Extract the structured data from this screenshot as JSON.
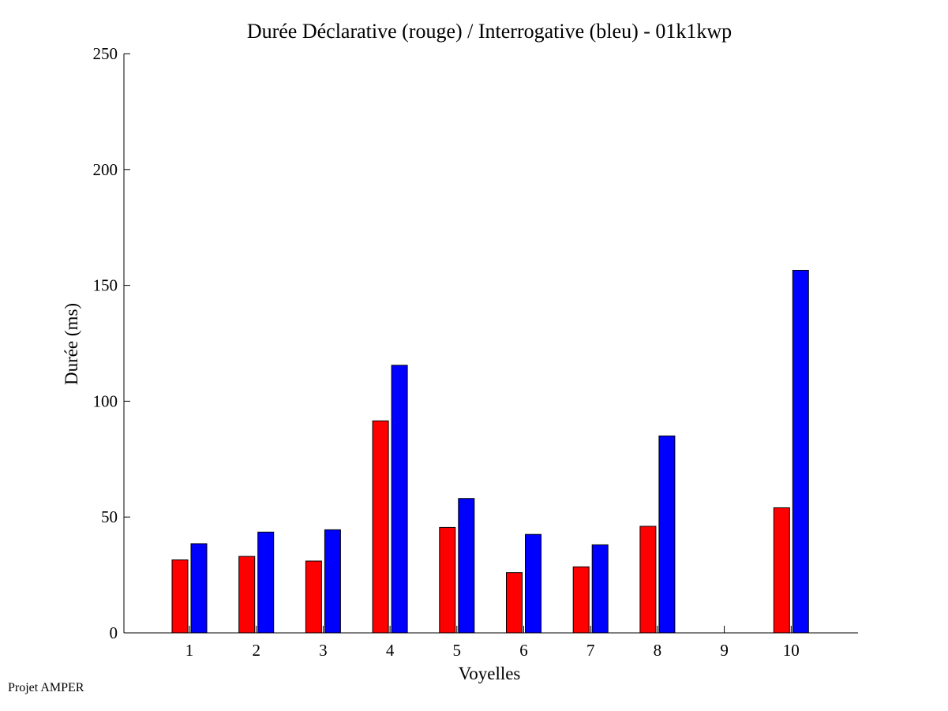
{
  "footer": "Projet AMPER",
  "colors": {
    "declarative": "#ff0000",
    "interrogative": "#0000ff",
    "axis": "#000000"
  },
  "chart_data": {
    "type": "bar",
    "title": "Durée Déclarative (rouge) / Interrogative (bleu) - 01k1kwp",
    "xlabel": "Voyelles",
    "ylabel": "Durée (ms)",
    "categories": [
      "1",
      "2",
      "3",
      "4",
      "5",
      "6",
      "7",
      "8",
      "9",
      "10"
    ],
    "ylim": [
      0,
      250
    ],
    "yticks": [
      0,
      50,
      100,
      150,
      200,
      250
    ],
    "grid": false,
    "series": [
      {
        "key": "declarative",
        "values": [
          31.5,
          33,
          31,
          91.5,
          45.5,
          26,
          28.5,
          46,
          null,
          54
        ]
      },
      {
        "key": "interrogative",
        "values": [
          38.5,
          43.5,
          44.5,
          115.5,
          58,
          42.5,
          38,
          85,
          null,
          156.5
        ]
      }
    ]
  }
}
